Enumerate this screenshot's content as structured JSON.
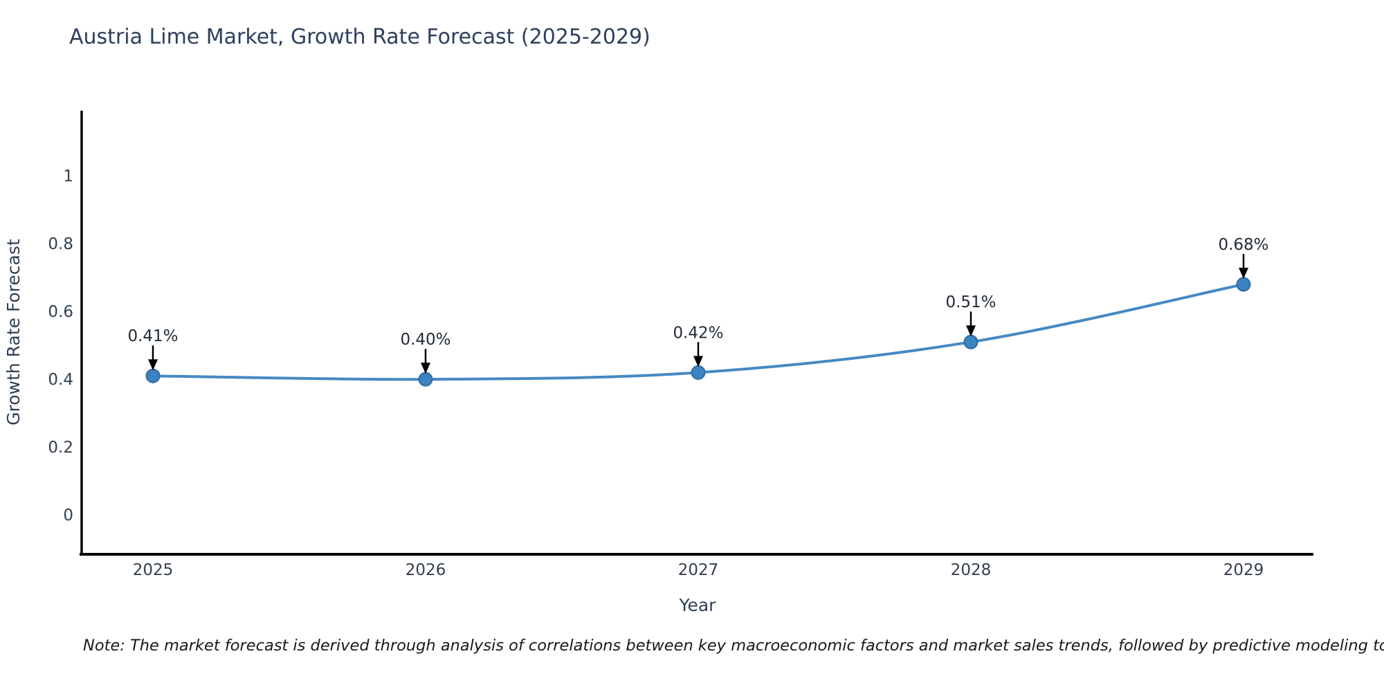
{
  "title": "Austria Lime Market, Growth Rate Forecast (2025-2029)",
  "note": "Note: The market forecast is derived through analysis of correlations between key macroeconomic factors and market sales trends, followed by predictive modeling to project future sales.",
  "chart_data": {
    "type": "line",
    "title": "Austria Lime Market, Growth Rate Forecast (2025-2029)",
    "xlabel": "Year",
    "ylabel": "Growth Rate Forecast",
    "x": [
      2025,
      2026,
      2027,
      2028,
      2029
    ],
    "series": [
      {
        "name": "Growth Rate Forecast",
        "values": [
          0.41,
          0.4,
          0.42,
          0.51,
          0.68
        ],
        "point_labels": [
          "0.41%",
          "0.40%",
          "0.42%",
          "0.51%",
          "0.68%"
        ]
      }
    ],
    "line_shape": "spline",
    "grid": false,
    "legend": "none",
    "ytick_values": [
      0,
      0.2,
      0.4,
      0.6,
      0.8,
      1
    ],
    "ytick_labels": [
      "0",
      "0.2",
      "0.4",
      "0.6",
      "0.8",
      "1"
    ],
    "ylim": [
      -0.116,
      1.192
    ],
    "colors": {
      "line": "#4589c4",
      "marker": "#3d83c0",
      "marker_edge": "#2e6ba4",
      "axis": "#000000",
      "tick_text": "#33404f",
      "annotation_text": "#222b36",
      "arrow": "#000000",
      "background": "#ffffff"
    }
  }
}
